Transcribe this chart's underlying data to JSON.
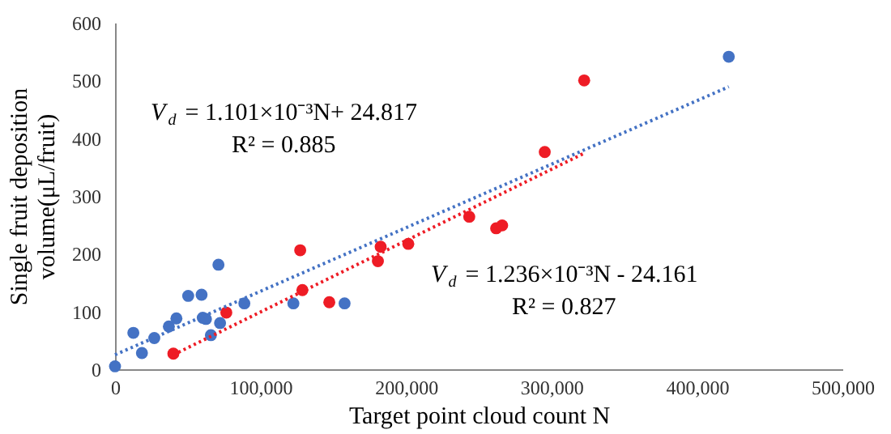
{
  "chart_data": {
    "type": "scatter",
    "xlabel": "Target point cloud count N",
    "ylabel": "Single fruit deposition volume(μL/fruit)",
    "xlim": [
      0,
      500000
    ],
    "xticks": [
      {
        "value": 0,
        "label": "0"
      },
      {
        "value": 100000,
        "label": "100,000"
      },
      {
        "value": 200000,
        "label": "200,000"
      },
      {
        "value": 300000,
        "label": "300,000"
      },
      {
        "value": 400000,
        "label": "400,000"
      },
      {
        "value": 500000,
        "label": "500,000"
      }
    ],
    "ylim": [
      0,
      600
    ],
    "yticks": [
      0,
      100,
      200,
      300,
      400,
      500,
      600
    ],
    "grid": false,
    "legend": false,
    "marker": "circle",
    "series": [
      {
        "color": "#4472c4",
        "x": [
          0,
          12600,
          18500,
          27000,
          37000,
          42200,
          50300,
          59500,
          60300,
          62500,
          65900,
          72200,
          71100,
          88900,
          122600,
          157800,
          421900
        ],
        "values": [
          5,
          63,
          28,
          54,
          74,
          88,
          127,
          129,
          89,
          87,
          59,
          80,
          181,
          114,
          114,
          114,
          541
        ]
      },
      {
        "color": "#ee1c25",
        "x": [
          40100,
          76500,
          127300,
          128800,
          147300,
          180700,
          182600,
          201600,
          243500,
          262000,
          266100,
          295400,
          322500
        ],
        "values": [
          27,
          98,
          206,
          137,
          116,
          187,
          212,
          217,
          264,
          244,
          249,
          376,
          500
        ]
      },
      {
        "type": "line",
        "color": "#4472c4",
        "line_style": "dotted",
        "marker": "none",
        "x": [
          0,
          421900
        ],
        "values": [
          25,
          489
        ]
      },
      {
        "type": "line",
        "color": "#ee1c25",
        "line_style": "dotted",
        "marker": "none",
        "x": [
          40100,
          322500
        ],
        "values": [
          25,
          374
        ]
      }
    ],
    "annotations": [
      "V$_{d}$ = 1.101×10⁻³N+ 24.817",
      "R² = 0.885",
      "V$_{d}$ = 1.236×10⁻³N - 24.161",
      "R² = 0.827"
    ]
  }
}
